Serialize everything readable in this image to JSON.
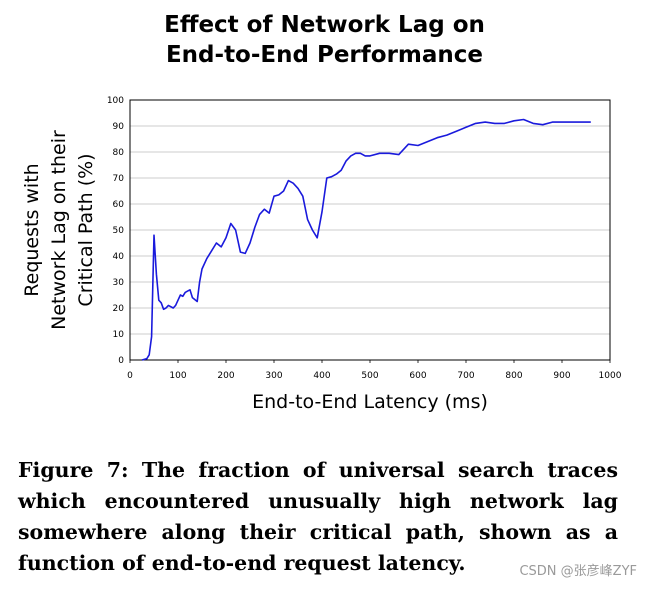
{
  "chart_data": {
    "type": "line",
    "title": "Effect of Network Lag on\nEnd-to-End Performance",
    "xlabel": "End-to-End Latency (ms)",
    "ylabel": "Requests with\nNetwork Lag on their\nCritical Path (%)",
    "xlim": [
      0,
      1000
    ],
    "ylim": [
      0,
      100
    ],
    "xticks": [
      0,
      100,
      200,
      300,
      400,
      500,
      600,
      700,
      800,
      900,
      1000
    ],
    "yticks": [
      0,
      10,
      20,
      30,
      40,
      50,
      60,
      70,
      80,
      90,
      100
    ],
    "grid": true,
    "legend": "none",
    "series": [
      {
        "color": "#1a1adc",
        "x": [
          25,
          35,
          40,
          45,
          50,
          55,
          60,
          65,
          70,
          75,
          80,
          85,
          90,
          95,
          100,
          105,
          110,
          115,
          120,
          125,
          130,
          140,
          145,
          150,
          160,
          170,
          180,
          190,
          200,
          210,
          220,
          230,
          240,
          250,
          260,
          270,
          280,
          290,
          300,
          310,
          320,
          330,
          340,
          350,
          360,
          370,
          380,
          390,
          400,
          410,
          420,
          430,
          440,
          450,
          460,
          470,
          480,
          490,
          500,
          520,
          540,
          560,
          580,
          600,
          620,
          640,
          660,
          680,
          700,
          720,
          740,
          760,
          780,
          800,
          820,
          840,
          860,
          880,
          900,
          920,
          940,
          960
        ],
        "y": [
          0,
          0.5,
          2,
          9,
          48,
          33,
          23,
          22,
          19.5,
          20,
          21,
          20.5,
          20,
          21,
          23,
          25,
          24.5,
          26,
          26.5,
          27,
          24,
          22.5,
          30,
          35,
          39,
          42,
          45,
          43.5,
          47,
          52.5,
          50,
          41.5,
          41,
          45,
          51,
          56,
          58,
          56.5,
          63,
          63.5,
          65,
          69,
          68,
          66,
          63,
          54,
          50,
          47,
          57,
          70,
          70.5,
          71.5,
          73,
          76.5,
          78.5,
          79.5,
          79.5,
          78.5,
          78.5,
          79.5,
          79.5,
          79,
          83,
          82.5,
          84,
          85.5,
          86.5,
          88,
          89.5,
          91,
          91.5,
          91,
          91,
          92,
          92.5,
          91,
          90.5,
          91.5,
          91.5,
          91.5,
          91.5,
          91.5
        ]
      }
    ]
  },
  "caption": "Figure 7:  The fraction of universal search traces which encountered unusually high network lag somewhere along their critical path, shown as a function of end-to-end request latency.",
  "watermark": "CSDN @张彦峰ZYF"
}
